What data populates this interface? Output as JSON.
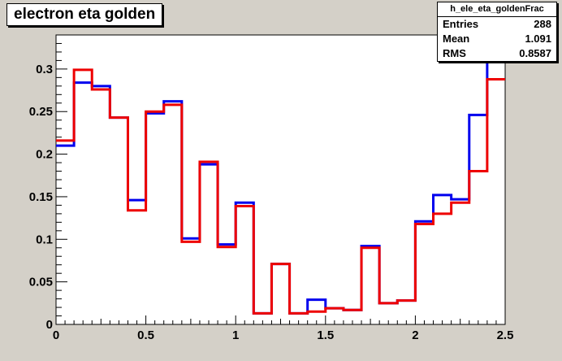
{
  "title": "electron eta golden",
  "stats": {
    "name": "h_ele_eta_goldenFrac",
    "rows": [
      {
        "label": "Entries",
        "value": "288"
      },
      {
        "label": "Mean",
        "value": "1.091"
      },
      {
        "label": "RMS",
        "value": "0.8587"
      }
    ]
  },
  "colors": {
    "blue": "#0000ee",
    "red": "#ee0000",
    "background": "#d4d0c8"
  },
  "chart_data": {
    "type": "step",
    "title": "electron eta golden",
    "xlim": [
      0,
      2.5
    ],
    "ylim": [
      0,
      0.34
    ],
    "xticks": [
      "0",
      "0.5",
      "1",
      "1.5",
      "2",
      "2.5"
    ],
    "yticks": [
      "0",
      "0.05",
      "0.1",
      "0.15",
      "0.2",
      "0.25",
      "0.3"
    ],
    "bin_edges": [
      0,
      0.1,
      0.2,
      0.3,
      0.4,
      0.5,
      0.6,
      0.7,
      0.8,
      0.9,
      1.0,
      1.1,
      1.2,
      1.3,
      1.4,
      1.5,
      1.6,
      1.7,
      1.8,
      1.9,
      2.0,
      2.1,
      2.2,
      2.3,
      2.4,
      2.5
    ],
    "series": [
      {
        "color": "#0000ee",
        "values": [
          0.21,
          0.284,
          0.28,
          0.243,
          0.146,
          0.248,
          0.262,
          0.101,
          0.188,
          0.094,
          0.143,
          0.013,
          0.071,
          0.013,
          0.029,
          0.019,
          0.017,
          0.092,
          0.025,
          0.028,
          0.121,
          0.152,
          0.147,
          0.246,
          0.326
        ]
      },
      {
        "color": "#ee0000",
        "values": [
          0.216,
          0.299,
          0.276,
          0.243,
          0.134,
          0.25,
          0.258,
          0.097,
          0.191,
          0.091,
          0.139,
          0.013,
          0.071,
          0.013,
          0.015,
          0.019,
          0.017,
          0.09,
          0.025,
          0.028,
          0.118,
          0.13,
          0.143,
          0.18,
          0.288
        ]
      }
    ]
  }
}
